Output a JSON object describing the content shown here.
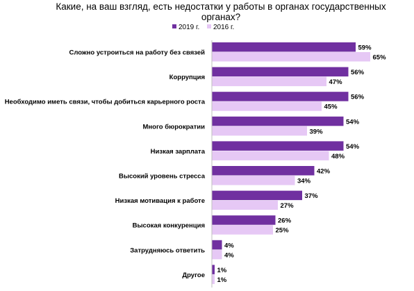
{
  "chart_data": {
    "type": "bar",
    "orientation": "horizontal",
    "title_lines": [
      "Какие, на ваш взгляд, есть недостатки у работы в органах государственных",
      "органах?"
    ],
    "categories": [
      "Сложно устроиться на работу без связей",
      "Коррупция",
      "Необходимо иметь связи, чтобы добиться карьерного роста",
      "Много бюрократии",
      "Низкая зарплата",
      "Высокий уровень стресса",
      "Низкая мотивация к работе",
      "Высокая конкуренция",
      "Затрудняюсь ответить",
      "Другое"
    ],
    "series": [
      {
        "name": "2019 г.",
        "color": "#7030a0",
        "values": [
          59,
          56,
          56,
          54,
          54,
          42,
          37,
          26,
          4,
          1
        ],
        "labels": [
          "59%",
          "56%",
          "56%",
          "54%",
          "54%",
          "42%",
          "37%",
          "26%",
          "4%",
          "1%"
        ]
      },
      {
        "name": "2016 г.",
        "color": "#e6c8f5",
        "values": [
          65,
          47,
          45,
          39,
          48,
          34,
          27,
          25,
          4,
          1
        ],
        "labels": [
          "65%",
          "47%",
          "45%",
          "39%",
          "48%",
          "34%",
          "27%",
          "25%",
          "4%",
          "1%"
        ]
      }
    ],
    "xlim": [
      0,
      100
    ],
    "grid": false,
    "legend_position": "top"
  }
}
